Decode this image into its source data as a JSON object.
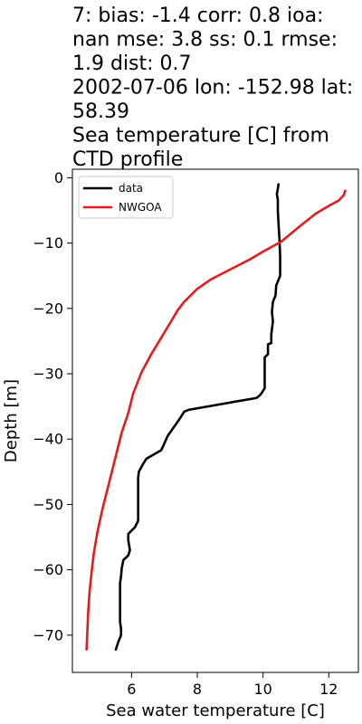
{
  "chart_data": {
    "type": "line",
    "title_lines": [
      "7: bias: -1.4  corr: 0.8  ioa:",
      "nan  mse: 3.8  ss: 0.1  rmse:",
      "1.9  dist: 0.7",
      "2002-07-06 lon: -152.98 lat:",
      "58.39",
      "Sea temperature [C] from",
      "CTD profile"
    ],
    "xlabel": "Sea water temperature [C]",
    "ylabel": "Depth [m]",
    "xlim": [
      4.2,
      12.9
    ],
    "ylim": [
      -75.7,
      1.3
    ],
    "xticks": [
      6,
      8,
      10,
      12
    ],
    "yticks": [
      0,
      -10,
      -20,
      -30,
      -40,
      -50,
      -60,
      -70
    ],
    "xtick_labels": [
      "6",
      "8",
      "10",
      "12"
    ],
    "ytick_labels": [
      "0",
      "−10",
      "−20",
      "−30",
      "−40",
      "−50",
      "−60",
      "−70"
    ],
    "legend": {
      "position": "upper-left",
      "entries": [
        "data",
        "NWGOA"
      ]
    },
    "grid": false,
    "series": [
      {
        "name": "data",
        "color": "#000000",
        "points": [
          [
            10.47,
            -1.0
          ],
          [
            10.45,
            -1.7
          ],
          [
            10.42,
            -2.5
          ],
          [
            10.45,
            -3.4
          ],
          [
            10.45,
            -5.0
          ],
          [
            10.47,
            -7.0
          ],
          [
            10.5,
            -9.5
          ],
          [
            10.52,
            -12.0
          ],
          [
            10.52,
            -15.0
          ],
          [
            10.4,
            -16.5
          ],
          [
            10.38,
            -18.0
          ],
          [
            10.3,
            -19.0
          ],
          [
            10.27,
            -20.5
          ],
          [
            10.3,
            -22.0
          ],
          [
            10.25,
            -24.0
          ],
          [
            10.25,
            -25.3
          ],
          [
            10.15,
            -25.5
          ],
          [
            10.15,
            -26.5
          ],
          [
            10.15,
            -27.0
          ],
          [
            10.05,
            -27.5
          ],
          [
            10.05,
            -29.5
          ],
          [
            10.05,
            -31.5
          ],
          [
            10.05,
            -32.2
          ],
          [
            9.95,
            -33.0
          ],
          [
            9.9,
            -33.3
          ],
          [
            9.8,
            -33.7
          ],
          [
            7.75,
            -35.5
          ],
          [
            7.6,
            -35.8
          ],
          [
            7.45,
            -37.0
          ],
          [
            7.1,
            -39.5
          ],
          [
            6.95,
            -41.2
          ],
          [
            6.9,
            -41.7
          ],
          [
            6.45,
            -43.0
          ],
          [
            6.35,
            -43.8
          ],
          [
            6.22,
            -45.0
          ],
          [
            6.2,
            -46.0
          ],
          [
            6.2,
            -48.0
          ],
          [
            6.2,
            -50.0
          ],
          [
            6.2,
            -52.5
          ],
          [
            6.1,
            -53.5
          ],
          [
            6.0,
            -54.0
          ],
          [
            5.9,
            -54.5
          ],
          [
            5.9,
            -55.5
          ],
          [
            5.95,
            -57.0
          ],
          [
            5.9,
            -57.8
          ],
          [
            5.75,
            -58.5
          ],
          [
            5.7,
            -59.8
          ],
          [
            5.68,
            -61.0
          ],
          [
            5.65,
            -62.0
          ],
          [
            5.65,
            -64.0
          ],
          [
            5.65,
            -66.0
          ],
          [
            5.65,
            -68.0
          ],
          [
            5.68,
            -69.0
          ],
          [
            5.68,
            -70.0
          ],
          [
            5.6,
            -71.0
          ],
          [
            5.52,
            -72.2
          ]
        ]
      },
      {
        "name": "NWGOA",
        "color": "#e41a1c",
        "points": [
          [
            12.5,
            -2.0
          ],
          [
            12.45,
            -2.7
          ],
          [
            12.3,
            -3.5
          ],
          [
            12.0,
            -4.3
          ],
          [
            11.6,
            -5.5
          ],
          [
            11.1,
            -7.5
          ],
          [
            10.55,
            -9.8
          ],
          [
            10.0,
            -11.3
          ],
          [
            9.6,
            -12.5
          ],
          [
            8.9,
            -14.3
          ],
          [
            8.4,
            -15.6
          ],
          [
            8.0,
            -17.0
          ],
          [
            7.6,
            -19.0
          ],
          [
            7.4,
            -20.3
          ],
          [
            7.2,
            -22.0
          ],
          [
            6.9,
            -24.5
          ],
          [
            6.6,
            -27.0
          ],
          [
            6.3,
            -29.8
          ],
          [
            6.05,
            -33.0
          ],
          [
            5.9,
            -36.0
          ],
          [
            5.7,
            -39.0
          ],
          [
            5.55,
            -42.0
          ],
          [
            5.4,
            -45.0
          ],
          [
            5.25,
            -48.0
          ],
          [
            5.1,
            -51.0
          ],
          [
            4.95,
            -54.5
          ],
          [
            4.85,
            -57.5
          ],
          [
            4.78,
            -60.5
          ],
          [
            4.72,
            -63.5
          ],
          [
            4.68,
            -66.5
          ],
          [
            4.65,
            -70.0
          ],
          [
            4.63,
            -72.2
          ]
        ]
      }
    ]
  }
}
